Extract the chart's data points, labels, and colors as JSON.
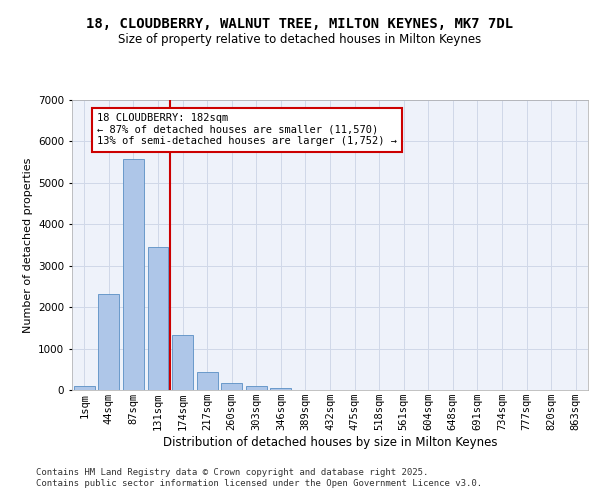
{
  "title": "18, CLOUDBERRY, WALNUT TREE, MILTON KEYNES, MK7 7DL",
  "subtitle": "Size of property relative to detached houses in Milton Keynes",
  "xlabel": "Distribution of detached houses by size in Milton Keynes",
  "ylabel": "Number of detached properties",
  "categories": [
    "1sqm",
    "44sqm",
    "87sqm",
    "131sqm",
    "174sqm",
    "217sqm",
    "260sqm",
    "303sqm",
    "346sqm",
    "389sqm",
    "432sqm",
    "475sqm",
    "518sqm",
    "561sqm",
    "604sqm",
    "648sqm",
    "691sqm",
    "734sqm",
    "777sqm",
    "820sqm",
    "863sqm"
  ],
  "values": [
    100,
    2320,
    5580,
    3450,
    1330,
    430,
    175,
    90,
    40,
    0,
    0,
    0,
    0,
    0,
    0,
    0,
    0,
    0,
    0,
    0,
    0
  ],
  "bar_color": "#aec6e8",
  "bar_edge_color": "#5a8fc4",
  "vline_color": "#cc0000",
  "vline_index": 4,
  "annotation_text": "18 CLOUDBERRY: 182sqm\n← 87% of detached houses are smaller (11,570)\n13% of semi-detached houses are larger (1,752) →",
  "annotation_box_color": "#cc0000",
  "ylim": [
    0,
    7000
  ],
  "yticks": [
    0,
    1000,
    2000,
    3000,
    4000,
    5000,
    6000,
    7000
  ],
  "grid_color": "#d0d8e8",
  "bg_color": "#eef2fa",
  "footer_text": "Contains HM Land Registry data © Crown copyright and database right 2025.\nContains public sector information licensed under the Open Government Licence v3.0.",
  "title_fontsize": 10,
  "subtitle_fontsize": 8.5,
  "xlabel_fontsize": 8.5,
  "ylabel_fontsize": 8,
  "tick_fontsize": 7.5,
  "footer_fontsize": 6.5,
  "ann_fontsize": 7.5
}
